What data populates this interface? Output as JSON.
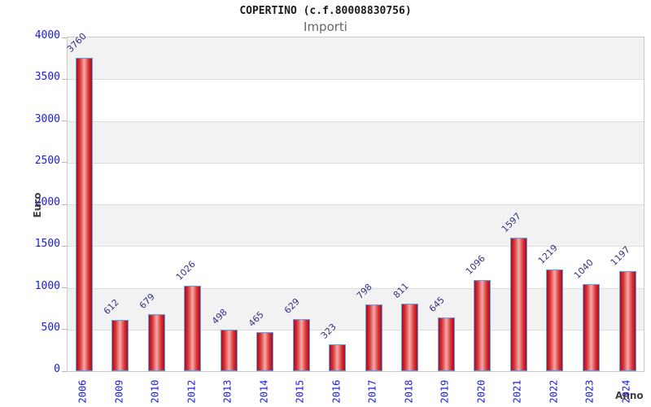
{
  "chart_data": {
    "type": "bar",
    "title": "COPERTINO (c.f.80008830756)",
    "subtitle": "Importi",
    "ylabel": "Euro",
    "xlabel": "Anno",
    "categories": [
      "2006",
      "2009",
      "2010",
      "2012",
      "2013",
      "2014",
      "2015",
      "2016",
      "2017",
      "2018",
      "2019",
      "2020",
      "2021",
      "2022",
      "2023",
      "2024"
    ],
    "values": [
      3760,
      612,
      679,
      1026,
      498,
      465,
      629,
      323,
      798,
      811,
      645,
      1096,
      1597,
      1219,
      1040,
      1197
    ],
    "ylim": [
      0,
      4000
    ],
    "yticks": [
      0,
      500,
      1000,
      1500,
      2000,
      2500,
      3000,
      3500,
      4000
    ],
    "grid": "horizontal-bands",
    "legend": "none",
    "bar_value_labels_rotated_deg": -45,
    "x_tick_labels_rotated_deg": -90,
    "colors": {
      "background": "#ffffff",
      "title": "#1a1a1a",
      "subtitle": "#666666",
      "tick_label": "#1a1ae0",
      "value_label": "#333388",
      "bar_fill_edge": "#a80c1c",
      "bar_fill_mid": "#f5aaaa",
      "bar_border": "#5ba3f0",
      "band": "#f2f2f2",
      "band_alt": "#ffffff",
      "gridline": "#dcdcdc",
      "plot_border": "#c9c9c9",
      "axis_title": "#404040"
    }
  }
}
